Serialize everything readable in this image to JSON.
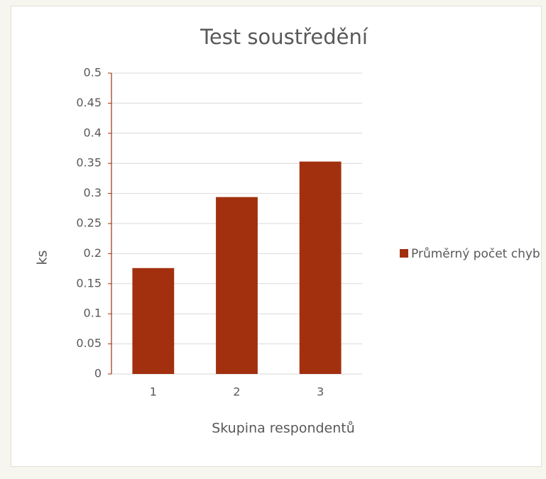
{
  "chart_data": {
    "type": "bar",
    "title": "Test soustředění",
    "x_label": "Skupina respondentů",
    "y_label": "ks",
    "categories": [
      "1",
      "2",
      "3"
    ],
    "series": [
      {
        "name": "Průměrný počet chyb",
        "color": "#a2300f",
        "values": [
          0.176,
          0.294,
          0.353
        ]
      }
    ],
    "ylim": [
      0,
      0.5
    ],
    "yticks": [
      0,
      0.05,
      0.1,
      0.15,
      0.2,
      0.25,
      0.3,
      0.35,
      0.4,
      0.45,
      0.5
    ],
    "grid": true,
    "legend": "right"
  }
}
